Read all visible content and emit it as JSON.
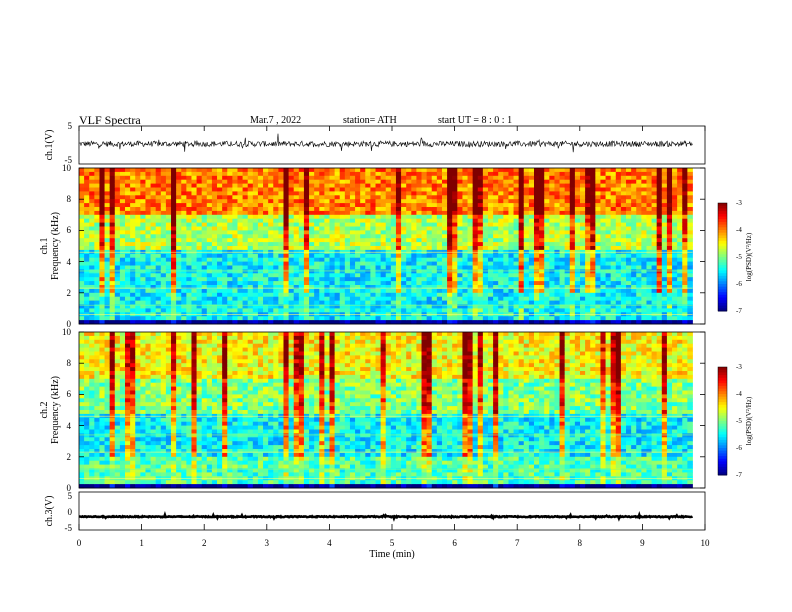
{
  "header": {
    "title": "VLF  Spectra",
    "date": "Mar.7  , 2022",
    "station": "station= ATH",
    "start_ut": "start  UT  =   8  : 0   : 1"
  },
  "chart_data": [
    {
      "type": "line",
      "name": "ch1-waveform",
      "ylabel": "ch.1(V)",
      "xlim": [
        0,
        10
      ],
      "ylim": [
        -5,
        5
      ],
      "yticks": [
        "5",
        "-5"
      ],
      "baseline": 0.3,
      "amplitude": 1.5,
      "x_extent_min": 9.8
    },
    {
      "type": "heatmap",
      "name": "ch1-spectrogram",
      "ylabel_top": "ch.1",
      "ylabel": "Frequency  (kHz)",
      "xlim": [
        0,
        10
      ],
      "ylim": [
        0,
        10
      ],
      "yticks": [
        "0",
        "2",
        "4",
        "6",
        "8",
        "10"
      ],
      "x_extent_min": 9.8,
      "colorbar": {
        "label": "log(PSD)(V²/Hz)",
        "range": [
          -7,
          -3
        ],
        "ticks": [
          "-3",
          "-4",
          "-5",
          "-6",
          "-7"
        ]
      },
      "bands": [
        {
          "from": 0,
          "to": 0.3,
          "level": -7
        },
        {
          "from": 0.3,
          "to": 2.0,
          "level": -5.5
        },
        {
          "from": 2.0,
          "to": 4.8,
          "level": -5.5
        },
        {
          "from": 4.8,
          "to": 7.0,
          "level": -4.8
        },
        {
          "from": 7.0,
          "to": 10.0,
          "level": -4.0
        }
      ]
    },
    {
      "type": "heatmap",
      "name": "ch2-spectrogram",
      "ylabel_top": "ch.2",
      "ylabel": "Frequency  (kHz)",
      "xlim": [
        0,
        10
      ],
      "ylim": [
        0,
        10
      ],
      "yticks": [
        "0",
        "2",
        "4",
        "6",
        "8",
        "10"
      ],
      "x_extent_min": 9.8,
      "colorbar": {
        "label": "log(PSD)(V²/Hz)",
        "range": [
          -7,
          -3
        ],
        "ticks": [
          "-3",
          "-4",
          "-5",
          "-6",
          "-7"
        ]
      },
      "bands": [
        {
          "from": 0,
          "to": 0.3,
          "level": -7
        },
        {
          "from": 0.3,
          "to": 2.0,
          "level": -5.2
        },
        {
          "from": 2.0,
          "to": 4.8,
          "level": -5.5
        },
        {
          "from": 4.8,
          "to": 7.0,
          "level": -5.0
        },
        {
          "from": 7.0,
          "to": 10.0,
          "level": -4.5
        }
      ]
    },
    {
      "type": "line",
      "name": "ch3-waveform",
      "ylabel": "ch.3(V)",
      "xlabel": "Time  (min)",
      "xlim": [
        0,
        10
      ],
      "ylim": [
        -5,
        5
      ],
      "yticks": [
        "5",
        "0",
        "-5"
      ],
      "xticks": [
        "0",
        "1",
        "2",
        "3",
        "4",
        "5",
        "6",
        "7",
        "8",
        "9",
        "10"
      ],
      "baseline": -1.5,
      "amplitude": 0.25,
      "x_extent_min": 9.8
    }
  ]
}
